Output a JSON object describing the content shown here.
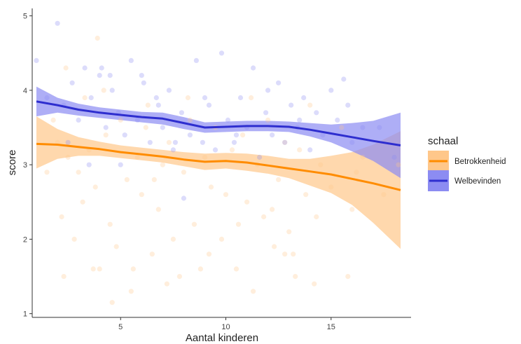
{
  "chart_data": {
    "type": "scatter",
    "xlabel": "Aantal kinderen",
    "ylabel": "score",
    "xlim": [
      0.8,
      18.8
    ],
    "ylim": [
      0.95,
      5.1
    ],
    "xticks": [
      5,
      10,
      15
    ],
    "yticks": [
      1,
      2,
      3,
      4,
      5
    ],
    "grid": false,
    "legend": {
      "title": "schaal",
      "placement": "right"
    },
    "series": [
      {
        "name": "Betrokkenheid",
        "color": "#FF8C00",
        "fill": "#FFC78A",
        "points_alpha": 0.3,
        "points": [
          [
            1.8,
            3.6
          ],
          [
            2.0,
            3.3
          ],
          [
            2.2,
            2.3
          ],
          [
            2.5,
            3.1
          ],
          [
            3.0,
            2.9
          ],
          [
            3.2,
            2.5
          ],
          [
            3.5,
            3.2
          ],
          [
            3.8,
            2.7
          ],
          [
            4.0,
            1.6
          ],
          [
            4.3,
            3.4
          ],
          [
            4.5,
            2.2
          ],
          [
            4.8,
            1.9
          ],
          [
            5.0,
            3.6
          ],
          [
            5.3,
            2.8
          ],
          [
            5.5,
            1.3
          ],
          [
            5.8,
            3.1
          ],
          [
            6.0,
            2.6
          ],
          [
            6.3,
            3.8
          ],
          [
            6.5,
            1.8
          ],
          [
            6.8,
            2.4
          ],
          [
            7.0,
            3.0
          ],
          [
            7.3,
            3.3
          ],
          [
            7.5,
            2.0
          ],
          [
            7.8,
            1.5
          ],
          [
            8.0,
            2.9
          ],
          [
            8.3,
            3.6
          ],
          [
            8.5,
            2.2
          ],
          [
            8.8,
            1.6
          ],
          [
            9.0,
            3.1
          ],
          [
            9.3,
            2.7
          ],
          [
            9.5,
            3.5
          ],
          [
            9.8,
            2.0
          ],
          [
            10.0,
            2.6
          ],
          [
            10.3,
            3.2
          ],
          [
            10.5,
            1.6
          ],
          [
            10.8,
            3.4
          ],
          [
            11.0,
            2.5
          ],
          [
            11.3,
            1.3
          ],
          [
            11.5,
            3.0
          ],
          [
            11.8,
            2.3
          ],
          [
            12.0,
            3.6
          ],
          [
            12.3,
            1.9
          ],
          [
            12.5,
            2.8
          ],
          [
            12.8,
            3.3
          ],
          [
            13.0,
            2.1
          ],
          [
            13.3,
            1.5
          ],
          [
            13.5,
            3.2
          ],
          [
            13.8,
            2.6
          ],
          [
            14.0,
            3.8
          ],
          [
            14.3,
            2.3
          ],
          [
            14.5,
            3.0
          ],
          [
            15.0,
            2.7
          ],
          [
            15.5,
            3.5
          ],
          [
            16.0,
            2.4
          ],
          [
            16.5,
            3.1
          ],
          [
            2.3,
            1.5
          ],
          [
            3.3,
            3.9
          ],
          [
            4.2,
            4.0
          ],
          [
            6.2,
            3.5
          ],
          [
            8.2,
            3.9
          ],
          [
            9.2,
            1.8
          ],
          [
            11.2,
            3.9
          ],
          [
            12.2,
            2.4
          ],
          [
            13.2,
            1.8
          ],
          [
            1.5,
            2.9
          ],
          [
            2.8,
            2.0
          ],
          [
            3.7,
            1.6
          ],
          [
            5.6,
            1.6
          ],
          [
            7.2,
            1.4
          ],
          [
            12.8,
            1.8
          ],
          [
            14.2,
            1.4
          ],
          [
            15.8,
            1.5
          ],
          [
            4.6,
            1.15
          ],
          [
            6.6,
            2.8
          ],
          [
            10.6,
            2.2
          ],
          [
            16.2,
            2.9
          ],
          [
            17.5,
            2.6
          ],
          [
            18.2,
            3.0
          ],
          [
            3.9,
            4.7
          ],
          [
            2.4,
            4.3
          ]
        ],
        "trend_x": [
          1,
          2,
          3,
          4,
          5,
          6,
          7,
          8,
          9,
          10,
          11,
          12,
          13,
          14,
          15,
          16,
          17,
          18.3
        ],
        "trend_y": [
          3.28,
          3.27,
          3.24,
          3.21,
          3.17,
          3.14,
          3.11,
          3.07,
          3.04,
          3.05,
          3.03,
          2.99,
          2.95,
          2.91,
          2.87,
          2.81,
          2.75,
          2.66
        ],
        "band_lo": [
          2.95,
          3.08,
          3.12,
          3.12,
          3.09,
          3.06,
          3.03,
          2.98,
          2.93,
          2.95,
          2.92,
          2.88,
          2.82,
          2.72,
          2.62,
          2.46,
          2.22,
          1.87
        ],
        "band_hi": [
          3.65,
          3.48,
          3.37,
          3.31,
          3.26,
          3.23,
          3.2,
          3.17,
          3.15,
          3.16,
          3.15,
          3.12,
          3.08,
          3.08,
          3.12,
          3.17,
          3.27,
          3.45
        ]
      },
      {
        "name": "Welbevinden",
        "color": "#2E2ECF",
        "fill": "#8C8CF2",
        "points_alpha": 0.3,
        "points": [
          [
            1.0,
            4.4
          ],
          [
            1.5,
            3.9
          ],
          [
            2.0,
            4.9
          ],
          [
            2.3,
            3.8
          ],
          [
            2.7,
            4.1
          ],
          [
            3.0,
            3.6
          ],
          [
            3.3,
            4.3
          ],
          [
            3.6,
            3.9
          ],
          [
            4.0,
            4.2
          ],
          [
            4.3,
            3.5
          ],
          [
            4.6,
            4.0
          ],
          [
            4.9,
            3.7
          ],
          [
            5.2,
            3.4
          ],
          [
            5.5,
            4.4
          ],
          [
            5.8,
            3.6
          ],
          [
            6.1,
            4.1
          ],
          [
            6.4,
            3.3
          ],
          [
            6.7,
            3.9
          ],
          [
            7.0,
            3.5
          ],
          [
            7.3,
            4.0
          ],
          [
            7.6,
            3.3
          ],
          [
            7.9,
            3.7
          ],
          [
            8.0,
            2.55
          ],
          [
            8.3,
            3.4
          ],
          [
            8.6,
            4.4
          ],
          [
            8.9,
            3.3
          ],
          [
            9.2,
            3.8
          ],
          [
            9.5,
            3.2
          ],
          [
            9.8,
            4.5
          ],
          [
            10.1,
            3.6
          ],
          [
            10.4,
            3.3
          ],
          [
            10.7,
            3.9
          ],
          [
            11.0,
            3.5
          ],
          [
            11.3,
            4.3
          ],
          [
            11.6,
            3.1
          ],
          [
            11.9,
            3.7
          ],
          [
            12.2,
            3.4
          ],
          [
            12.5,
            4.1
          ],
          [
            12.8,
            3.3
          ],
          [
            13.1,
            3.8
          ],
          [
            13.4,
            3.5
          ],
          [
            13.7,
            3.9
          ],
          [
            14.0,
            3.2
          ],
          [
            14.3,
            3.7
          ],
          [
            14.6,
            3.4
          ],
          [
            15.0,
            4.0
          ],
          [
            15.3,
            3.6
          ],
          [
            15.6,
            4.15
          ],
          [
            16.0,
            3.3
          ],
          [
            16.5,
            3.5
          ],
          [
            17.3,
            3.5
          ],
          [
            2.5,
            3.3
          ],
          [
            3.5,
            3.0
          ],
          [
            4.1,
            4.3
          ],
          [
            5.0,
            3.0
          ],
          [
            6.0,
            4.2
          ],
          [
            7.5,
            3.2
          ],
          [
            9.0,
            3.9
          ],
          [
            10.5,
            3.4
          ],
          [
            12.0,
            4.0
          ],
          [
            13.5,
            3.6
          ],
          [
            15.8,
            3.8
          ],
          [
            18.0,
            3.1
          ],
          [
            4.5,
            4.2
          ],
          [
            6.8,
            3.8
          ]
        ],
        "trend_x": [
          1,
          2,
          3,
          4,
          5,
          6,
          7,
          8,
          9,
          10,
          11,
          12,
          13,
          14,
          15,
          16,
          17,
          18.3
        ],
        "trend_y": [
          3.85,
          3.8,
          3.74,
          3.7,
          3.67,
          3.64,
          3.62,
          3.56,
          3.5,
          3.51,
          3.52,
          3.52,
          3.51,
          3.47,
          3.42,
          3.37,
          3.32,
          3.26
        ],
        "band_lo": [
          3.65,
          3.7,
          3.66,
          3.63,
          3.6,
          3.57,
          3.54,
          3.48,
          3.43,
          3.44,
          3.45,
          3.45,
          3.44,
          3.38,
          3.3,
          3.18,
          3.05,
          2.82
        ],
        "band_hi": [
          4.05,
          3.9,
          3.82,
          3.77,
          3.74,
          3.71,
          3.7,
          3.64,
          3.57,
          3.58,
          3.59,
          3.59,
          3.58,
          3.56,
          3.54,
          3.56,
          3.59,
          3.7
        ]
      }
    ]
  }
}
